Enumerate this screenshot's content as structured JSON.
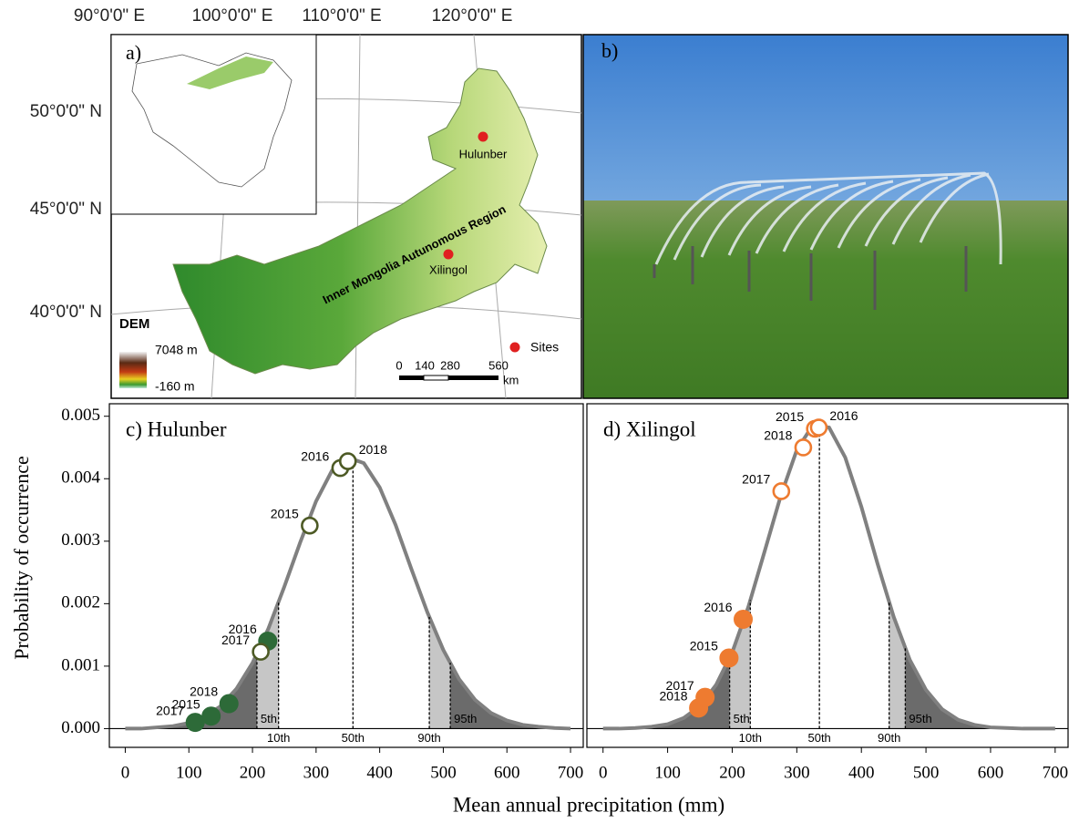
{
  "map": {
    "panel_label": "a)",
    "longitudes": [
      "90°0'0\" E",
      "100°0'0\" E",
      "110°0'0\" E",
      "120°0'0\" E"
    ],
    "latitudes": [
      "50°0'0\" N",
      "45°0'0\" N",
      "40°0'0\" N"
    ],
    "sites": [
      "Hulunber",
      "Xilingol"
    ],
    "region": "Inner Mongolia Autunomous Region",
    "legend_title": "DEM",
    "dem_max": "7048 m",
    "dem_min": "-160 m",
    "sites_legend": "Sites",
    "scale": [
      0,
      140,
      280,
      560
    ],
    "scale_unit": "km"
  },
  "photo": {
    "panel_label": "b)"
  },
  "chart_data": [
    {
      "type": "density",
      "title": "c) Hulunber",
      "ylabel": "Probability of occurrence",
      "xlabel": "Mean annual precipitation (mm)",
      "color": "#808080",
      "x": [
        0,
        25,
        50,
        75,
        100,
        125,
        150,
        175,
        200,
        225,
        250,
        275,
        300,
        325,
        350,
        375,
        400,
        425,
        450,
        475,
        500,
        525,
        550,
        575,
        600,
        625,
        650,
        675,
        700
      ],
      "values": [
        0,
        0,
        2e-05,
        4e-05,
        9e-05,
        0.00019,
        0.00036,
        0.00064,
        0.00105,
        0.0016,
        0.00227,
        0.00298,
        0.00364,
        0.00413,
        0.00434,
        0.00425,
        0.00386,
        0.00326,
        0.00255,
        0.00186,
        0.00126,
        0.00079,
        0.00046,
        0.00025,
        0.00013,
        6e-05,
        3e-05,
        1e-05,
        0
      ],
      "percentiles": {
        "x": [
          207,
          241,
          358,
          478,
          511
        ],
        "labels": [
          "5th",
          "10th",
          "50th",
          "90th",
          "95th"
        ]
      },
      "series": [
        {
          "style": "filled",
          "color": "#2d6a38",
          "x": [
            110,
            135,
            163,
            224
          ],
          "values": [
            0.0001,
            0.0002,
            0.0004,
            0.0014
          ],
          "labels": [
            "2017",
            "2015",
            "2018",
            "2016"
          ]
        },
        {
          "style": "open",
          "color": "#4d5a25",
          "x": [
            213,
            290,
            338,
            350
          ],
          "values": [
            0.00123,
            0.00325,
            0.00417,
            0.00428
          ],
          "labels": [
            "2017",
            "2015",
            "2016",
            "2018"
          ]
        }
      ],
      "xlim": [
        -25,
        720
      ],
      "ylim": [
        -0.0003,
        0.0052
      ],
      "xticks": [
        0,
        100,
        200,
        300,
        400,
        500,
        600,
        700
      ],
      "yticks": [
        {
          "value": 0,
          "label": "0.000"
        },
        0.001,
        0.002,
        0.003,
        0.004,
        0.005
      ]
    },
    {
      "type": "density",
      "title": "d) Xilingol",
      "color": "#808080",
      "x": [
        0,
        25,
        50,
        75,
        100,
        125,
        150,
        175,
        200,
        225,
        250,
        275,
        300,
        325,
        350,
        375,
        400,
        425,
        450,
        475,
        500,
        525,
        550,
        575,
        600,
        625,
        650,
        675,
        700
      ],
      "values": [
        0,
        0,
        1e-05,
        3e-05,
        7e-05,
        0.00017,
        0.00036,
        0.0007,
        0.00122,
        0.00195,
        0.00283,
        0.00372,
        0.00446,
        0.00486,
        0.00482,
        0.00434,
        0.00355,
        0.00264,
        0.00179,
        0.0011,
        0.00062,
        0.00031,
        0.00014,
        6e-05,
        2e-05,
        1e-05,
        0,
        0,
        0
      ],
      "percentiles": {
        "x": [
          196,
          228,
          335,
          443,
          468
        ],
        "labels": [
          "5th",
          "10th",
          "50th",
          "90th",
          "95th"
        ]
      },
      "series": [
        {
          "style": "filled",
          "color": "#ee7b30",
          "x": [
            148,
            158,
            195,
            217
          ],
          "values": [
            0.00033,
            0.0005,
            0.00113,
            0.00175
          ],
          "labels": [
            "2018",
            "2017",
            "2015",
            "2016"
          ]
        },
        {
          "style": "open",
          "color": "#ee7b30",
          "x": [
            276,
            310,
            328,
            334
          ],
          "values": [
            0.0038,
            0.0045,
            0.0048,
            0.00482
          ],
          "labels": [
            "2017",
            "2018",
            "2015",
            "2016"
          ]
        }
      ],
      "xlim": [
        -25,
        720
      ],
      "ylim": [
        -0.0003,
        0.0052
      ],
      "xticks": [
        0,
        100,
        200,
        300,
        400,
        500,
        600,
        700
      ]
    }
  ]
}
